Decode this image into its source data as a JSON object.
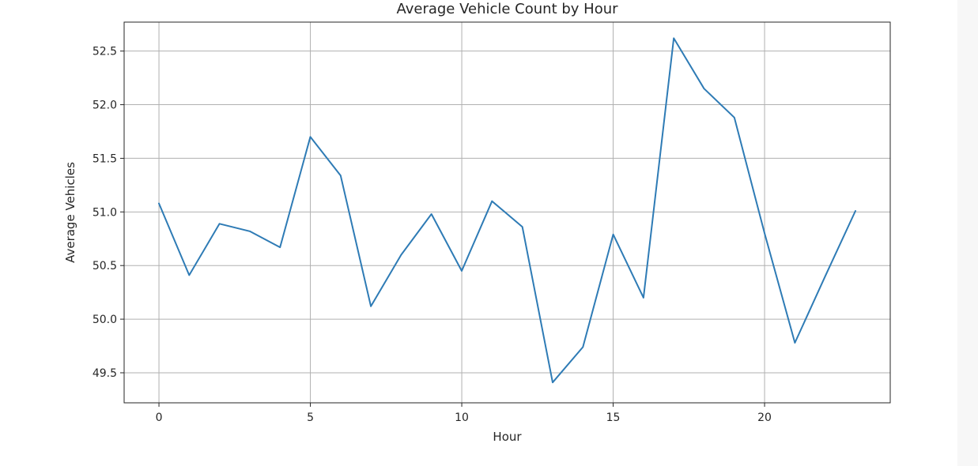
{
  "chart_data": {
    "type": "line",
    "title": "Average Vehicle Count by Hour",
    "xlabel": "Hour",
    "ylabel": "Average Vehicles",
    "xlim": [
      -1.15,
      24.15
    ],
    "ylim": [
      49.22,
      52.77
    ],
    "x_ticks": [
      0,
      5,
      10,
      15,
      20
    ],
    "y_ticks": [
      49.5,
      50.0,
      50.5,
      51.0,
      51.5,
      52.0,
      52.5
    ],
    "y_tick_labels": [
      "49.5",
      "50.0",
      "50.5",
      "51.0",
      "51.5",
      "52.0",
      "52.5"
    ],
    "grid": true,
    "series": [
      {
        "color": "#2e7bb5",
        "x": [
          0,
          1,
          2,
          3,
          4,
          5,
          6,
          7,
          8,
          9,
          10,
          11,
          12,
          13,
          14,
          15,
          16,
          17,
          18,
          19,
          20,
          21,
          22,
          23
        ],
        "values": [
          51.08,
          50.41,
          50.89,
          50.82,
          50.67,
          51.7,
          51.34,
          50.12,
          50.6,
          50.98,
          50.45,
          51.1,
          50.86,
          49.41,
          49.74,
          50.79,
          50.2,
          52.62,
          52.15,
          51.88,
          50.8,
          49.78,
          50.4,
          51.01
        ]
      }
    ]
  }
}
